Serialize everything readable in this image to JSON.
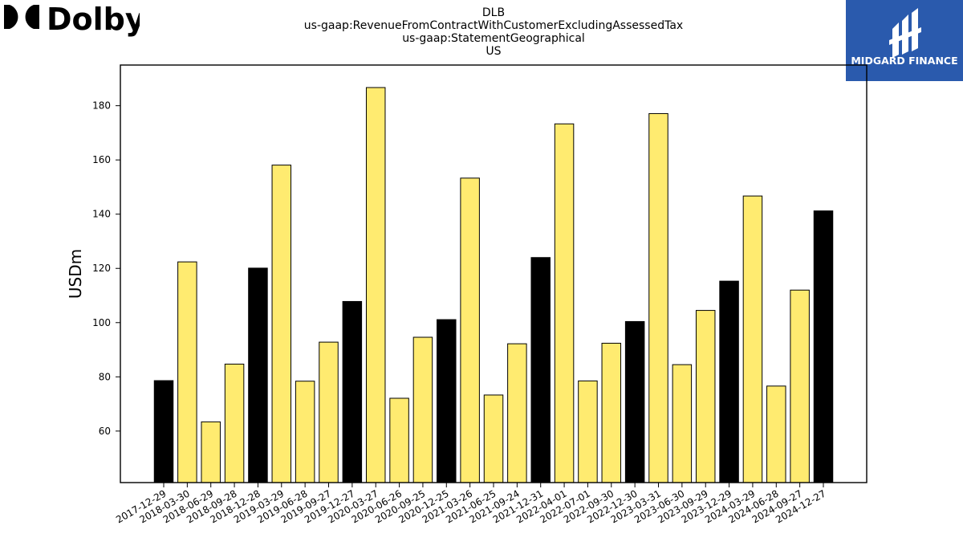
{
  "brand_logo": {
    "text": "Dolby"
  },
  "partner_logo": {
    "text": "MIDGARD FINANCE",
    "color": "#2a5aad"
  },
  "chart_data": {
    "type": "bar",
    "title_lines": [
      "DLB",
      "us-gaap:RevenueFromContractWithCustomerExcludingAssessedTax",
      "us-gaap:StatementGeographical",
      "US"
    ],
    "xlabel": "",
    "ylabel": "USDm",
    "ylim": [
      41,
      195
    ],
    "yticks": [
      60,
      80,
      100,
      120,
      140,
      160,
      180
    ],
    "grid": false,
    "colors": {
      "quarter": "#ffeb70",
      "fiscal_year_end": "#000000",
      "edge": "#000000"
    },
    "categories": [
      "2017-12-29",
      "2018-03-30",
      "2018-06-29",
      "2018-09-28",
      "2018-12-28",
      "2019-03-29",
      "2019-06-28",
      "2019-09-27",
      "2019-12-27",
      "2020-03-27",
      "2020-06-26",
      "2020-09-25",
      "2020-12-25",
      "2021-03-26",
      "2021-06-25",
      "2021-09-24",
      "2021-12-31",
      "2022-04-01",
      "2022-07-01",
      "2022-09-30",
      "2022-12-30",
      "2023-03-31",
      "2023-06-30",
      "2023-09-29",
      "2023-12-29",
      "2024-03-29",
      "2024-06-28",
      "2024-09-27",
      "2024-12-27"
    ],
    "values": [
      78.6,
      122.4,
      63.4,
      84.7,
      120.1,
      158.1,
      78.4,
      92.8,
      107.8,
      186.7,
      72.1,
      94.6,
      101.1,
      153.3,
      73.3,
      92.2,
      124.0,
      173.3,
      78.5,
      92.4,
      100.4,
      177.1,
      84.5,
      104.5,
      115.3,
      146.7,
      76.6,
      112.0,
      141.2
    ],
    "highlight": [
      true,
      false,
      false,
      false,
      true,
      false,
      false,
      false,
      true,
      false,
      false,
      false,
      true,
      false,
      false,
      false,
      true,
      false,
      false,
      false,
      true,
      false,
      false,
      false,
      true,
      false,
      false,
      false,
      true
    ]
  }
}
